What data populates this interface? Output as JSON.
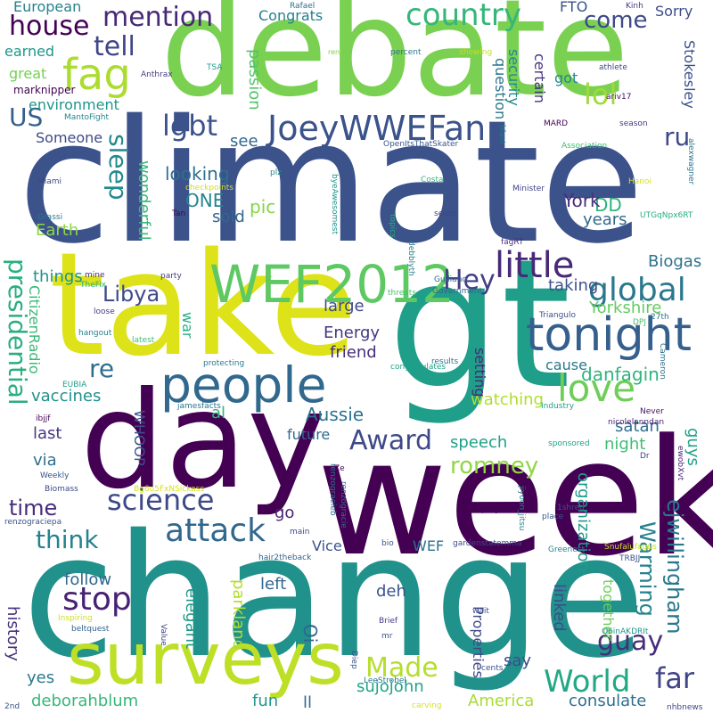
{
  "words": [
    {
      "text": "climate",
      "color": "#3b528b"
    },
    {
      "text": "change",
      "color": "#21918c"
    },
    {
      "text": "debate",
      "color": "#7ad151"
    },
    {
      "text": "week",
      "color": "#440154"
    },
    {
      "text": "gt",
      "color": "#1f9e89"
    },
    {
      "text": "take",
      "color": "#dde318"
    },
    {
      "text": "day",
      "color": "#440154"
    },
    {
      "text": "surveys",
      "color": "#bddf26"
    },
    {
      "text": "people",
      "color": "#31688e"
    },
    {
      "text": "WEF2012",
      "color": "#5ec962"
    },
    {
      "text": "tonight",
      "color": "#35608d"
    },
    {
      "text": "JoeyWWEFan",
      "color": "#3b528b"
    },
    {
      "text": "fag",
      "color": "#addc30"
    },
    {
      "text": "country",
      "color": "#35b779"
    },
    {
      "text": "love",
      "color": "#6ece58"
    },
    {
      "text": "little",
      "color": "#482878"
    },
    {
      "text": "global",
      "color": "#2a788e"
    },
    {
      "text": "presidential",
      "color": "#29af7f"
    },
    {
      "text": "attack",
      "color": "#31688e"
    },
    {
      "text": "science",
      "color": "#3e4989"
    },
    {
      "text": "stop",
      "color": "#482173"
    },
    {
      "text": "World",
      "color": "#22a884"
    },
    {
      "text": "Made",
      "color": "#b5de2b"
    },
    {
      "text": "Award",
      "color": "#3e4989"
    },
    {
      "text": "romney",
      "color": "#90d743"
    },
    {
      "text": "guay",
      "color": "#472d7b"
    },
    {
      "text": "far",
      "color": "#414487"
    },
    {
      "text": "house",
      "color": "#440154"
    },
    {
      "text": "mention",
      "color": "#482878"
    },
    {
      "text": "tell",
      "color": "#404688"
    },
    {
      "text": "US",
      "color": "#355f8d"
    },
    {
      "text": "lgbt",
      "color": "#3b528b"
    },
    {
      "text": "lol",
      "color": "#a0da39"
    },
    {
      "text": "come",
      "color": "#3e4989"
    },
    {
      "text": "ru",
      "color": "#3f4889"
    },
    {
      "text": "Hey",
      "color": "#433e85"
    },
    {
      "text": "Libya",
      "color": "#3e4a89"
    },
    {
      "text": "sleep",
      "color": "#238a8d"
    },
    {
      "text": "think",
      "color": "#26828e"
    },
    {
      "text": "re",
      "color": "#2e6f8e"
    },
    {
      "text": "time",
      "color": "#472c7a"
    },
    {
      "text": "Warming",
      "color": "#26828e"
    },
    {
      "text": "ejwillingham",
      "color": "#2a788e"
    },
    {
      "text": "Aussie",
      "color": "#2c728e"
    },
    {
      "text": "speech",
      "color": "#1fa088"
    },
    {
      "text": "danfagin",
      "color": "#2fb47c"
    },
    {
      "text": "Yorkshire",
      "color": "#63cb5f"
    },
    {
      "text": "taking",
      "color": "#3b528b"
    },
    {
      "text": "Biogas",
      "color": "#2c728e"
    },
    {
      "text": "DD",
      "color": "#2fb47c"
    },
    {
      "text": "York",
      "color": "#472d7b"
    },
    {
      "text": "looking",
      "color": "#2d708e"
    },
    {
      "text": "ONE",
      "color": "#24868e"
    },
    {
      "text": "sold",
      "color": "#31688e"
    },
    {
      "text": "pic",
      "color": "#86d549"
    },
    {
      "text": "see",
      "color": "#31688e"
    },
    {
      "text": "wonderful",
      "color": "#37b878"
    },
    {
      "text": "Earth",
      "color": "#90d743"
    },
    {
      "text": "things",
      "color": "#21918c"
    },
    {
      "text": "CitizenRadio",
      "color": "#3aba76"
    },
    {
      "text": "vaccines",
      "color": "#21918c"
    },
    {
      "text": "last",
      "color": "#453882"
    },
    {
      "text": "via",
      "color": "#2d708e"
    },
    {
      "text": "go",
      "color": "#482475"
    },
    {
      "text": "follow",
      "color": "#31688e"
    },
    {
      "text": "history",
      "color": "#46327e"
    },
    {
      "text": "yes",
      "color": "#2a788e"
    },
    {
      "text": "deborahblum",
      "color": "#35b779"
    },
    {
      "text": "sujojohn",
      "color": "#20a386"
    },
    {
      "text": "America",
      "color": "#a8db34"
    },
    {
      "text": "consulate",
      "color": "#2e6e8e"
    },
    {
      "text": "fun",
      "color": "#1f968b"
    },
    {
      "text": "ll",
      "color": "#32658e"
    },
    {
      "text": "say",
      "color": "#3d4d8a"
    },
    {
      "text": "Properties",
      "color": "#3f4788"
    },
    {
      "text": "linked",
      "color": "#3e4c8a"
    },
    {
      "text": "together",
      "color": "#6ccd5a"
    },
    {
      "text": "organization",
      "color": "#1e9b8a"
    },
    {
      "text": "satan",
      "color": "#2e6e8e"
    },
    {
      "text": "night",
      "color": "#3fbc73"
    },
    {
      "text": "guys",
      "color": "#1fa187"
    },
    {
      "text": "years",
      "color": "#31688e"
    },
    {
      "text": "watching",
      "color": "#b0dd2f"
    },
    {
      "text": "cause",
      "color": "#2a788e"
    },
    {
      "text": "setting",
      "color": "#482878"
    },
    {
      "text": "friend",
      "color": "#472e7c"
    },
    {
      "text": "Energy",
      "color": "#453781"
    },
    {
      "text": "large",
      "color": "#3e4989"
    },
    {
      "text": "war",
      "color": "#28ae80"
    },
    {
      "text": "al",
      "color": "#32b67a"
    },
    {
      "text": "future",
      "color": "#31688e"
    },
    {
      "text": "WHOOP",
      "color": "#3b528b"
    },
    {
      "text": "elegant",
      "color": "#1f9a8a"
    },
    {
      "text": "parkland",
      "color": "#b2dd2d"
    },
    {
      "text": "left",
      "color": "#32658e"
    },
    {
      "text": "Oi",
      "color": "#32648e"
    },
    {
      "text": "deh",
      "color": "#3a548c"
    },
    {
      "text": "WEF",
      "color": "#2c728e"
    },
    {
      "text": "Vice",
      "color": "#3a538b"
    },
    {
      "text": "Someone",
      "color": "#3e4a89"
    },
    {
      "text": "environment",
      "color": "#1f958b"
    },
    {
      "text": "great",
      "color": "#75d054"
    },
    {
      "text": "earned",
      "color": "#1f968b"
    },
    {
      "text": "marknipper",
      "color": "#440154"
    },
    {
      "text": "European",
      "color": "#26828e"
    },
    {
      "text": "passion",
      "color": "#52c569"
    },
    {
      "text": "Congrats",
      "color": "#27808e"
    },
    {
      "text": "question",
      "color": "#2a768e"
    },
    {
      "text": "security",
      "color": "#23888e"
    },
    {
      "text": "certain",
      "color": "#46337f"
    },
    {
      "text": "got",
      "color": "#24878e"
    },
    {
      "text": "FTO",
      "color": "#3a538b"
    },
    {
      "text": "Sorry",
      "color": "#3e4c8a"
    },
    {
      "text": "Stokesley",
      "color": "#3b528b"
    },
    {
      "text": "Rafael",
      "color": "#2d708e"
    },
    {
      "text": "Anthrax",
      "color": "#433d84"
    },
    {
      "text": "TSA",
      "color": "#1e9c89"
    },
    {
      "text": "renz",
      "color": "#7fd34e"
    },
    {
      "text": "percent",
      "color": "#2c738e"
    },
    {
      "text": "showing",
      "color": "#c2df23"
    },
    {
      "text": "Kinh",
      "color": "#433e85"
    },
    {
      "text": "athlete",
      "color": "#3f4889"
    },
    {
      "text": "ariv17",
      "color": "#471063"
    },
    {
      "text": "MARD",
      "color": "#440154"
    },
    {
      "text": "season",
      "color": "#443a83"
    },
    {
      "text": "alexwagner",
      "color": "#2b758e"
    },
    {
      "text": "Association",
      "color": "#3dbc74"
    },
    {
      "text": "Minister",
      "color": "#414487"
    },
    {
      "text": "blast",
      "color": "#2a778e"
    },
    {
      "text": "OpenItsThatSkater",
      "color": "#39568c"
    },
    {
      "text": "MantoFight",
      "color": "#24878e"
    },
    {
      "text": "Miami",
      "color": "#3e4989"
    },
    {
      "text": "plz",
      "color": "#24878e"
    },
    {
      "text": "checkpoints",
      "color": "#d0e11c"
    },
    {
      "text": "Grassi",
      "color": "#2a788e"
    },
    {
      "text": "Tan",
      "color": "#440154"
    },
    {
      "text": "byeAwesomest",
      "color": "#1f948c"
    },
    {
      "text": "Costa",
      "color": "#34b679"
    },
    {
      "text": "topics",
      "color": "#2ab07f"
    },
    {
      "text": "seem",
      "color": "#414487"
    },
    {
      "text": "Hanoi",
      "color": "#d8e219"
    },
    {
      "text": "UTGqNpx6RT",
      "color": "#26ad81"
    },
    {
      "text": "mine",
      "color": "#46307e"
    },
    {
      "text": "TheFix",
      "color": "#2ab07f"
    },
    {
      "text": "party",
      "color": "#433d84"
    },
    {
      "text": "loose",
      "color": "#433e85"
    },
    {
      "text": "debblyth",
      "color": "#287d8e"
    },
    {
      "text": "Guiliano",
      "color": "#31688e"
    },
    {
      "text": "fagRT",
      "color": "#472f7d"
    },
    {
      "text": "threats",
      "color": "#4ac16d"
    },
    {
      "text": "Government",
      "color": "#33628d"
    },
    {
      "text": "Triangulo",
      "color": "#3b528b"
    },
    {
      "text": "DPJ",
      "color": "#48c16e"
    },
    {
      "text": "27th",
      "color": "#2e6e8e"
    },
    {
      "text": "hangout",
      "color": "#277f8e"
    },
    {
      "text": "latest",
      "color": "#3fbc73"
    },
    {
      "text": "protecting",
      "color": "#29798e"
    },
    {
      "text": "results",
      "color": "#2d708e"
    },
    {
      "text": "congratulates",
      "color": "#1fa188"
    },
    {
      "text": "Cameron",
      "color": "#2c728e"
    },
    {
      "text": "EUBIA",
      "color": "#1f9e89"
    },
    {
      "text": "jamesfacts",
      "color": "#2b748e"
    },
    {
      "text": "Industry",
      "color": "#1fa088"
    },
    {
      "text": "Never",
      "color": "#471365"
    },
    {
      "text": "ibjjf",
      "color": "#440154"
    },
    {
      "text": "nicolelanndan",
      "color": "#481b6d"
    },
    {
      "text": "sponsored",
      "color": "#20a386"
    },
    {
      "text": "Weekly",
      "color": "#3b528b"
    },
    {
      "text": "Dr",
      "color": "#433e85"
    },
    {
      "text": "ewobXvt",
      "color": "#482374"
    },
    {
      "text": "Biomass",
      "color": "#3e4989"
    },
    {
      "text": "Bg6o5FxNSickass",
      "color": "#d5e21a"
    },
    {
      "text": "Ze",
      "color": "#440154"
    },
    {
      "text": "renzogracieb",
      "color": "#2e6e8e"
    },
    {
      "text": "renzogracie",
      "color": "#31688e"
    },
    {
      "text": "renzograciepa",
      "color": "#3b528b"
    },
    {
      "text": "jiyoon_jitsu",
      "color": "#25848e"
    },
    {
      "text": "pitty",
      "color": "#440154"
    },
    {
      "text": "1shred",
      "color": "#3b528b"
    },
    {
      "text": "place",
      "color": "#38598c"
    },
    {
      "text": "main",
      "color": "#3e4989"
    },
    {
      "text": "bio",
      "color": "#39568c"
    },
    {
      "text": "gardenstatemma",
      "color": "#3e4a89"
    },
    {
      "text": "Snufalufagus",
      "color": "#c5e021"
    },
    {
      "text": "hair2theback",
      "color": "#32658e"
    },
    {
      "text": "Greenest",
      "color": "#24878e"
    },
    {
      "text": "TRBJJ",
      "color": "#3b528b"
    },
    {
      "text": "Inspiring",
      "color": "#d0e11c"
    },
    {
      "text": "wait",
      "color": "#3b528b"
    },
    {
      "text": "Value",
      "color": "#3e4989"
    },
    {
      "text": "Brief",
      "color": "#433e85"
    },
    {
      "text": "beltquest",
      "color": "#32648e"
    },
    {
      "text": "mr",
      "color": "#3b528b"
    },
    {
      "text": "Q6inAKDRIt",
      "color": "#1f968b"
    },
    {
      "text": "Diep",
      "color": "#3b528b"
    },
    {
      "text": "cents",
      "color": "#3b528b"
    },
    {
      "text": "LeeStrobel",
      "color": "#2a788e"
    },
    {
      "text": "carving",
      "color": "#d8e219"
    },
    {
      "text": "2nd",
      "color": "#3b528b"
    },
    {
      "text": "nhbnews",
      "color": "#3e4989"
    }
  ]
}
